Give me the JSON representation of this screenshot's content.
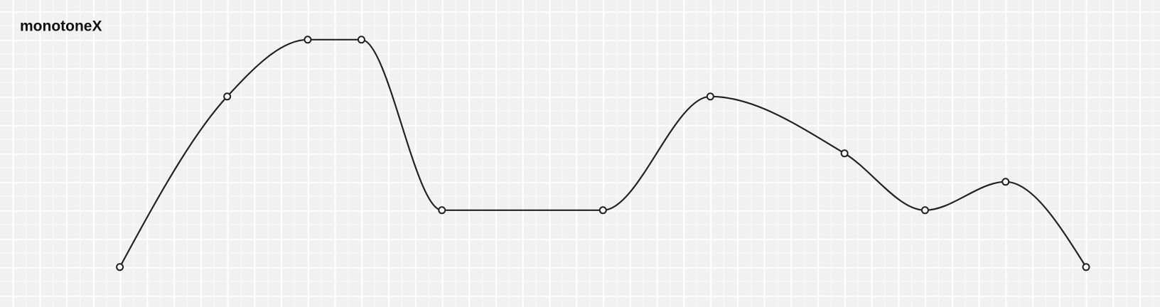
{
  "chart_data": {
    "type": "line",
    "title": "monotoneX",
    "x": [
      0,
      4,
      7,
      9,
      12,
      18,
      22,
      27,
      30,
      33,
      36
    ],
    "values": [
      0,
      6,
      8,
      8,
      2,
      2,
      6,
      4,
      2,
      3,
      0
    ],
    "color": "#222222",
    "xlim": [
      0,
      36
    ],
    "ylim": [
      0,
      8
    ],
    "grid": true
  }
}
